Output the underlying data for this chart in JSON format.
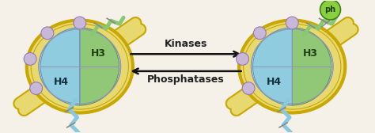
{
  "background_color": "#f5f0e8",
  "dna_color": "#e8d870",
  "dna_outline_color": "#c8a800",
  "body_color": "#d8dce8",
  "body_outline": "#9098b0",
  "h3_color": "#90c878",
  "h3_outline": "#508840",
  "h4_color": "#90cce0",
  "h4_outline": "#4090a8",
  "h3_label": "H3",
  "h4_label": "H4",
  "circle_fill": "#c8b8d8",
  "circle_edge": "#9878b8",
  "green_tail": "#88c870",
  "blue_tail": "#88c8e0",
  "tick_color": "#888888",
  "ph_fill": "#88d040",
  "ph_edge": "#408010",
  "ph_text": "ph",
  "ph_text_color": "#204010",
  "kinases_text": "Kinases",
  "phosphatases_text": "Phosphatases",
  "text_color": "#222222",
  "arrow_color": "#111111"
}
